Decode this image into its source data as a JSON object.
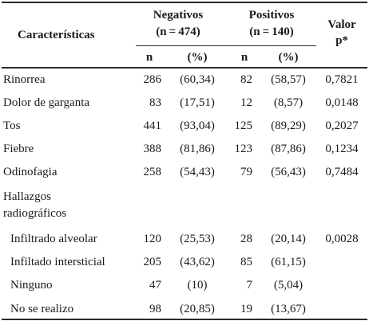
{
  "header": {
    "characteristics": "Características",
    "negatives_title": "Negativos",
    "negatives_n": "(n = 474)",
    "positives_title": "Positivos",
    "positives_n": "(n = 140)",
    "pvalue_line1": "Valor",
    "pvalue_line2": "p*",
    "col_n": "n",
    "col_pct": "(%)"
  },
  "rows": [
    {
      "label": "Rinorrea",
      "neg_n": "286",
      "neg_pct": "(60,34)",
      "pos_n": "82",
      "pos_pct": "(58,57)",
      "p": "0,7821"
    },
    {
      "label": "Dolor de garganta",
      "neg_n": "83",
      "neg_pct": "(17,51)",
      "pos_n": "12",
      "pos_pct": "(8,57)",
      "p": "0,0148"
    },
    {
      "label": "Tos",
      "neg_n": "441",
      "neg_pct": "(93,04)",
      "pos_n": "125",
      "pos_pct": "(89,29)",
      "p": "0,2027"
    },
    {
      "label": "Fiebre",
      "neg_n": "388",
      "neg_pct": "(81,86)",
      "pos_n": "123",
      "pos_pct": "(87,86)",
      "p": "0,1234"
    },
    {
      "label": "Odinofagia",
      "neg_n": "258",
      "neg_pct": "(54,43)",
      "pos_n": "79",
      "pos_pct": "(56,43)",
      "p": "0,7484"
    }
  ],
  "group": {
    "label_line1": "Hallazgos",
    "label_line2": "radiográficos",
    "rows": [
      {
        "label": "Infiltrado alveolar",
        "neg_n": "120",
        "neg_pct": "(25,53)",
        "pos_n": "28",
        "pos_pct": "(20,14)",
        "p": "0,0028"
      },
      {
        "label": "Infiltado intersticial",
        "neg_n": "205",
        "neg_pct": "(43,62)",
        "pos_n": "85",
        "pos_pct": "(61,15)",
        "p": ""
      },
      {
        "label": "Ninguno",
        "neg_n": "47",
        "neg_pct": "(10)",
        "pos_n": "7",
        "pos_pct": "(5,04)",
        "p": ""
      },
      {
        "label": "No se realizo",
        "neg_n": "98",
        "neg_pct": "(20,85)",
        "pos_n": "19",
        "pos_pct": "(13,67)",
        "p": ""
      }
    ]
  }
}
